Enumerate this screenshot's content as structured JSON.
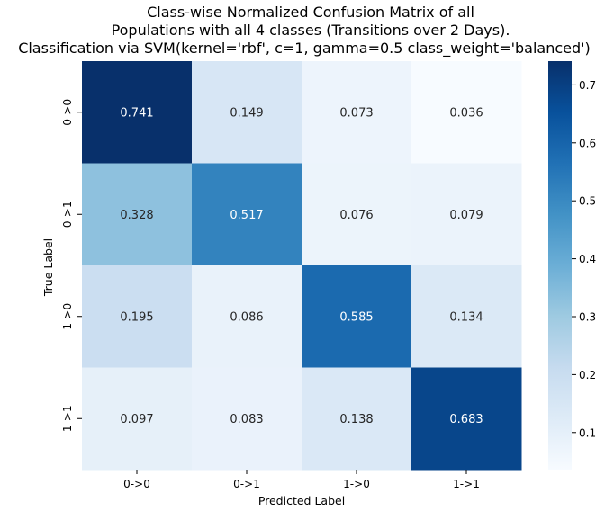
{
  "chart_data": {
    "type": "heatmap",
    "title_lines": [
      "Class-wise Normalized Confusion Matrix of all",
      "Populations with all 4 classes (Transitions over 2 Days).",
      "Classification via SVM(kernel='rbf', c=1, gamma=0.5 class_weight='balanced')"
    ],
    "xlabel": "Predicted Label",
    "ylabel": "True Label",
    "x_categories": [
      "0->0",
      "0->1",
      "1->0",
      "1->1"
    ],
    "y_categories": [
      "0->0",
      "0->1",
      "1->0",
      "1->1"
    ],
    "values": [
      [
        0.741,
        0.149,
        0.073,
        0.036
      ],
      [
        0.328,
        0.517,
        0.076,
        0.079
      ],
      [
        0.195,
        0.086,
        0.585,
        0.134
      ],
      [
        0.097,
        0.083,
        0.138,
        0.683
      ]
    ],
    "value_labels": [
      [
        "0.741",
        "0.149",
        "0.073",
        "0.036"
      ],
      [
        "0.328",
        "0.517",
        "0.076",
        "0.079"
      ],
      [
        "0.195",
        "0.086",
        "0.585",
        "0.134"
      ],
      [
        "0.097",
        "0.083",
        "0.138",
        "0.683"
      ]
    ],
    "colormap": "Blues",
    "colorbar": {
      "range": [
        0.036,
        0.741
      ],
      "ticks": [
        0.1,
        0.2,
        0.3,
        0.4,
        0.5,
        0.6,
        0.7
      ],
      "tick_labels": [
        "0.1",
        "0.2",
        "0.3",
        "0.4",
        "0.5",
        "0.6",
        "0.7"
      ]
    }
  }
}
